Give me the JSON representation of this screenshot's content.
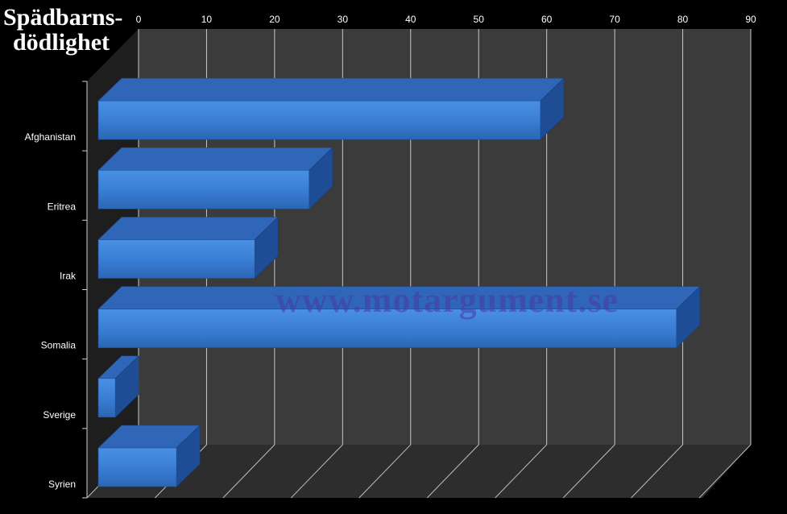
{
  "chart_data": {
    "type": "bar",
    "orientation": "horizontal",
    "title_lines": [
      "Spädbarns-",
      "dödlighet"
    ],
    "categories": [
      "Afghanistan",
      "Eritrea",
      "Irak",
      "Somalia",
      "Sverige",
      "Syrien"
    ],
    "values": [
      65,
      31,
      23,
      85,
      2.5,
      11.5
    ],
    "xticks": [
      "0",
      "10",
      "20",
      "30",
      "40",
      "50",
      "60",
      "70",
      "80",
      "90"
    ],
    "xlim": [
      0,
      90
    ],
    "grid": true,
    "legend": "none",
    "watermark": "www.motargument.se",
    "colors": {
      "bar_front": "#3a7fd5",
      "bar_top": "#2f66b8",
      "bar_side": "#1f4d95",
      "wall": "#3c3c3c",
      "floor": "#2c2c2c",
      "gridline": "#cfcfcf"
    }
  }
}
